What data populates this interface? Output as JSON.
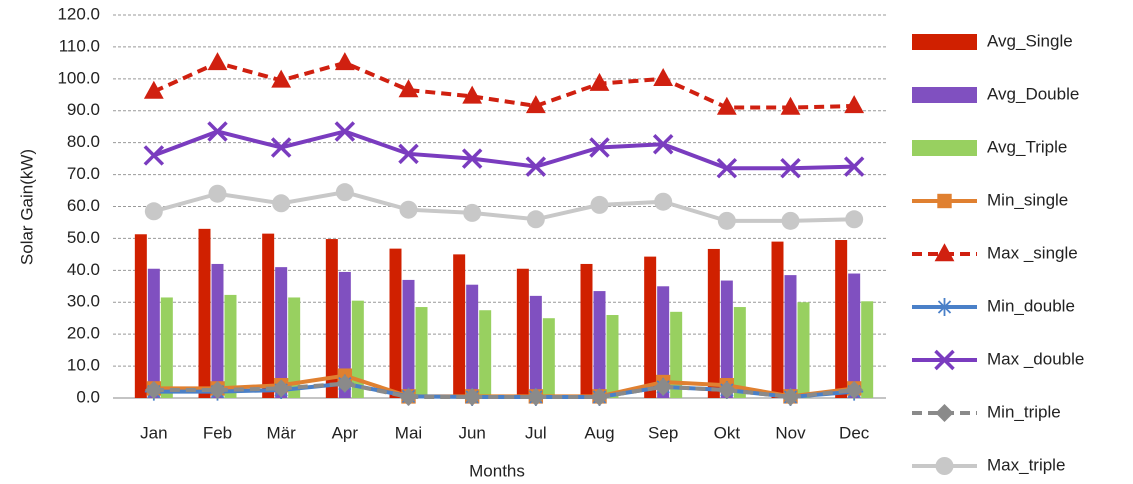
{
  "chart_data": {
    "type": "bar_line",
    "x_label": "Months",
    "y_label": "Solar Gain(kW)",
    "categories": [
      "Jan",
      "Feb",
      "Mär",
      "Apr",
      "Mai",
      "Jun",
      "Jul",
      "Aug",
      "Sep",
      "Okt",
      "Nov",
      "Dec"
    ],
    "ylim": [
      0,
      120
    ],
    "yticks": [
      {
        "value": 0,
        "label": "0.0"
      },
      {
        "value": 10,
        "label": "10.0"
      },
      {
        "value": 20,
        "label": "20.0"
      },
      {
        "value": 30,
        "label": "30.0"
      },
      {
        "value": 40,
        "label": "40.0"
      },
      {
        "value": 50,
        "label": "50.0"
      },
      {
        "value": 60,
        "label": "60.0"
      },
      {
        "value": 70,
        "label": "70.0"
      },
      {
        "value": 80,
        "label": "80.0"
      },
      {
        "value": 90,
        "label": "90.0"
      },
      {
        "value": 100,
        "label": "100.0"
      },
      {
        "value": 110,
        "label": "110.0"
      },
      {
        "value": 120,
        "label": "120.0"
      }
    ],
    "grid": true,
    "series": [
      {
        "name": "Avg_Single",
        "kind": "bar",
        "color": "#d02000",
        "values": [
          51.3,
          53,
          51.5,
          49.8,
          46.8,
          45,
          40.5,
          42,
          44.3,
          46.7,
          49,
          49.5
        ]
      },
      {
        "name": "Avg_Double",
        "kind": "bar",
        "color": "#8050c0",
        "values": [
          40.5,
          42,
          41,
          39.5,
          37,
          35.5,
          32,
          33.5,
          35,
          36.8,
          38.5,
          39
        ]
      },
      {
        "name": "Avg_Triple",
        "kind": "bar",
        "color": "#98d060",
        "values": [
          31.5,
          32.3,
          31.5,
          30.5,
          28.5,
          27.5,
          25,
          26,
          27,
          28.5,
          30,
          30.3
        ]
      },
      {
        "name": "Min_single",
        "kind": "line",
        "color": "#e08030",
        "marker": "square",
        "dash": false,
        "values": [
          3,
          3,
          4,
          7,
          0.5,
          0.5,
          0.5,
          0.5,
          5,
          4,
          0.5,
          3
        ]
      },
      {
        "name": "Max _single",
        "kind": "line",
        "color": "#d02010",
        "marker": "triangle",
        "dash": true,
        "values": [
          96,
          105,
          99.5,
          105,
          96.5,
          94.5,
          91.5,
          98.5,
          100,
          91,
          91,
          91.5
        ]
      },
      {
        "name": "Min_double",
        "kind": "line",
        "color": "#4a80c8",
        "marker": "asterisk",
        "dash": false,
        "values": [
          2,
          2,
          2.5,
          4.5,
          0.5,
          0.3,
          0.3,
          0.3,
          3.5,
          2.5,
          0.3,
          2
        ]
      },
      {
        "name": "Max _double",
        "kind": "line",
        "color": "#7a3cbf",
        "marker": "x",
        "dash": false,
        "values": [
          76,
          83.5,
          78.5,
          83.5,
          76.5,
          75,
          72.5,
          78.5,
          79.5,
          72,
          72,
          72.5
        ]
      },
      {
        "name": "Min_triple",
        "kind": "line",
        "color": "#8a8a8a",
        "marker": "diamond",
        "dash": true,
        "values": [
          2.5,
          2.5,
          3,
          4.5,
          0.3,
          0.3,
          0.3,
          0.3,
          3.5,
          2.5,
          0.3,
          2.5
        ]
      },
      {
        "name": "Max_triple",
        "kind": "line",
        "color": "#c8c8c8",
        "marker": "circle",
        "dash": false,
        "values": [
          58.5,
          64,
          61,
          64.5,
          59,
          58,
          56,
          60.5,
          61.5,
          55.5,
          55.5,
          56
        ]
      }
    ]
  }
}
